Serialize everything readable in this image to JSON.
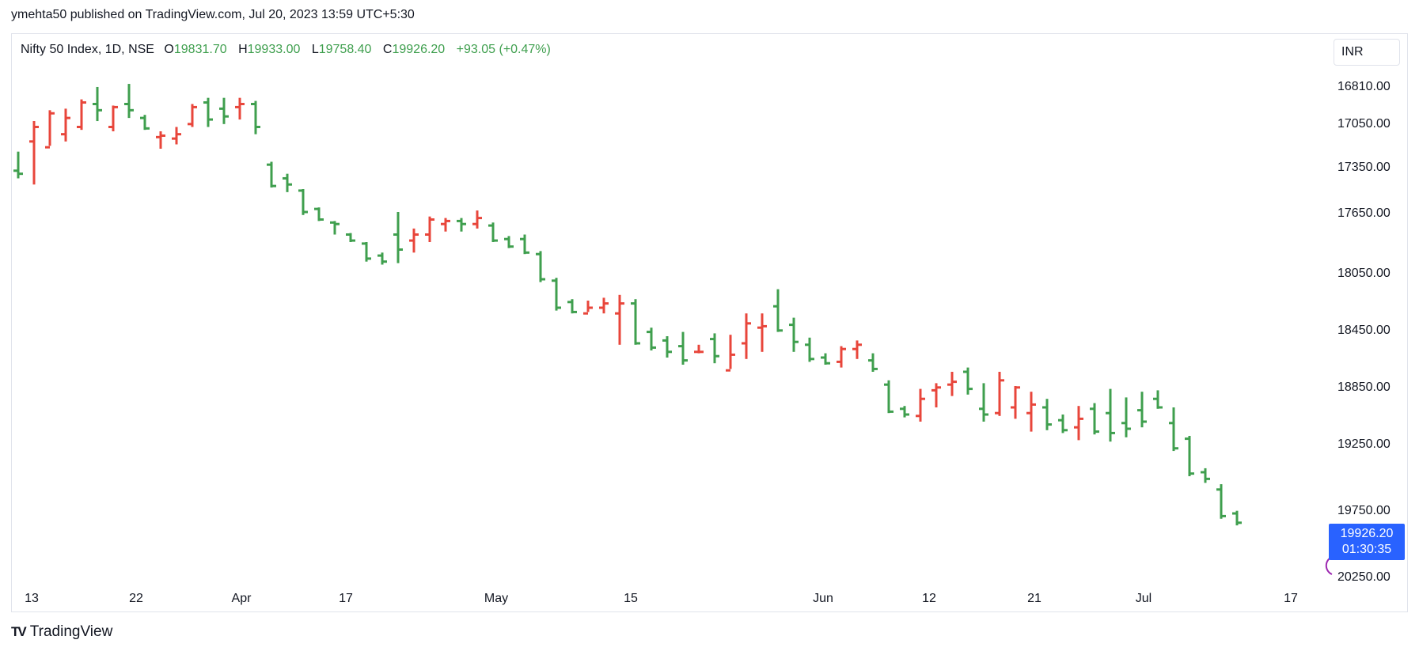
{
  "header": {
    "published": "ymehta50 published on TradingView.com, Jul 20, 2023 13:59 UTC+5:30"
  },
  "legend": {
    "symbol": "Nifty 50 Index, 1D, NSE",
    "o_label": "O",
    "o": "19831.70",
    "h_label": "H",
    "h": "19933.00",
    "l_label": "L",
    "l": "19758.40",
    "c_label": "C",
    "c": "19926.20",
    "change": "+93.05 (+0.47%)"
  },
  "currency": "INR",
  "last_price": {
    "price": "19926.20",
    "countdown": "01:30:35"
  },
  "brand": {
    "name": "TradingView"
  },
  "colors": {
    "up": "#3f9f4e",
    "down": "#e8463b",
    "axis_text": "#131722",
    "price_tag": "#2962ff"
  },
  "chart_data": {
    "type": "ohlc",
    "inverted_price_scale": true,
    "y_ticks": [
      "16810.00",
      "17050.00",
      "17350.00",
      "17650.00",
      "18050.00",
      "18450.00",
      "18850.00",
      "19250.00",
      "19750.00",
      "20250.00"
    ],
    "x_ticks": [
      "13",
      "22",
      "Apr",
      "17",
      "May",
      "15",
      "Jun",
      "12",
      "21",
      "Jul",
      "17"
    ],
    "bars": [
      {
        "o": 17380,
        "h": 17250,
        "l": 17430,
        "c": 17400
      },
      {
        "o": 17180,
        "h": 17040,
        "l": 17470,
        "c": 17080
      },
      {
        "o": 17220,
        "h": 16970,
        "l": 17210,
        "c": 16990
      },
      {
        "o": 17130,
        "h": 16960,
        "l": 17180,
        "c": 17020
      },
      {
        "o": 17080,
        "h": 16900,
        "l": 17100,
        "c": 16920
      },
      {
        "o": 16930,
        "h": 16820,
        "l": 17040,
        "c": 16970
      },
      {
        "o": 17080,
        "h": 16940,
        "l": 17110,
        "c": 16950
      },
      {
        "o": 16930,
        "h": 16800,
        "l": 17020,
        "c": 16970
      },
      {
        "o": 17020,
        "h": 17000,
        "l": 17100,
        "c": 17090
      },
      {
        "o": 17150,
        "h": 17110,
        "l": 17230,
        "c": 17140
      },
      {
        "o": 17160,
        "h": 17080,
        "l": 17200,
        "c": 17130
      },
      {
        "o": 17060,
        "h": 16930,
        "l": 17080,
        "c": 16950
      },
      {
        "o": 16920,
        "h": 16890,
        "l": 17080,
        "c": 17030
      },
      {
        "o": 16960,
        "h": 16890,
        "l": 17060,
        "c": 17010
      },
      {
        "o": 16950,
        "h": 16890,
        "l": 17030,
        "c": 16930
      },
      {
        "o": 16930,
        "h": 16910,
        "l": 17130,
        "c": 17080
      },
      {
        "o": 17340,
        "h": 17320,
        "l": 17490,
        "c": 17480
      },
      {
        "o": 17430,
        "h": 17400,
        "l": 17520,
        "c": 17470
      },
      {
        "o": 17510,
        "h": 17500,
        "l": 17670,
        "c": 17650
      },
      {
        "o": 17630,
        "h": 17620,
        "l": 17710,
        "c": 17700
      },
      {
        "o": 17720,
        "h": 17710,
        "l": 17800,
        "c": 17730
      },
      {
        "o": 17800,
        "h": 17790,
        "l": 17850,
        "c": 17840
      },
      {
        "o": 17860,
        "h": 17850,
        "l": 17980,
        "c": 17960
      },
      {
        "o": 17940,
        "h": 17920,
        "l": 18000,
        "c": 17980
      },
      {
        "o": 17800,
        "h": 17650,
        "l": 17990,
        "c": 17900
      },
      {
        "o": 17840,
        "h": 17760,
        "l": 17920,
        "c": 17800
      },
      {
        "o": 17800,
        "h": 17680,
        "l": 17850,
        "c": 17700
      },
      {
        "o": 17730,
        "h": 17690,
        "l": 17780,
        "c": 17710
      },
      {
        "o": 17710,
        "h": 17690,
        "l": 17780,
        "c": 17730
      },
      {
        "o": 17730,
        "h": 17640,
        "l": 17760,
        "c": 17690
      },
      {
        "o": 17740,
        "h": 17720,
        "l": 17850,
        "c": 17840
      },
      {
        "o": 17830,
        "h": 17810,
        "l": 17890,
        "c": 17880
      },
      {
        "o": 17830,
        "h": 17800,
        "l": 17930,
        "c": 17920
      },
      {
        "o": 17930,
        "h": 17910,
        "l": 18120,
        "c": 18100
      },
      {
        "o": 18110,
        "h": 18090,
        "l": 18320,
        "c": 18300
      },
      {
        "o": 18260,
        "h": 18240,
        "l": 18340,
        "c": 18330
      },
      {
        "o": 18340,
        "h": 18250,
        "l": 18330,
        "c": 18300
      },
      {
        "o": 18300,
        "h": 18230,
        "l": 18340,
        "c": 18270
      },
      {
        "o": 18340,
        "h": 18210,
        "l": 18560,
        "c": 18270
      },
      {
        "o": 18270,
        "h": 18240,
        "l": 18560,
        "c": 18550
      },
      {
        "o": 18470,
        "h": 18440,
        "l": 18600,
        "c": 18580
      },
      {
        "o": 18530,
        "h": 18500,
        "l": 18650,
        "c": 18610
      },
      {
        "o": 18570,
        "h": 18470,
        "l": 18700,
        "c": 18670
      },
      {
        "o": 18610,
        "h": 18560,
        "l": 18620,
        "c": 18610
      },
      {
        "o": 18520,
        "h": 18480,
        "l": 18690,
        "c": 18640
      },
      {
        "o": 18740,
        "h": 18490,
        "l": 18730,
        "c": 18630
      },
      {
        "o": 18550,
        "h": 18340,
        "l": 18660,
        "c": 18410
      },
      {
        "o": 18440,
        "h": 18340,
        "l": 18610,
        "c": 18430
      },
      {
        "o": 18290,
        "h": 18170,
        "l": 18470,
        "c": 18460
      },
      {
        "o": 18420,
        "h": 18370,
        "l": 18610,
        "c": 18540
      },
      {
        "o": 18560,
        "h": 18510,
        "l": 18680,
        "c": 18660
      },
      {
        "o": 18650,
        "h": 18620,
        "l": 18700,
        "c": 18690
      },
      {
        "o": 18680,
        "h": 18570,
        "l": 18720,
        "c": 18590
      },
      {
        "o": 18590,
        "h": 18530,
        "l": 18660,
        "c": 18560
      },
      {
        "o": 18670,
        "h": 18620,
        "l": 18750,
        "c": 18730
      },
      {
        "o": 18840,
        "h": 18810,
        "l": 19040,
        "c": 19030
      },
      {
        "o": 19010,
        "h": 18990,
        "l": 19070,
        "c": 19050
      },
      {
        "o": 19060,
        "h": 18870,
        "l": 19100,
        "c": 18940
      },
      {
        "o": 18880,
        "h": 18830,
        "l": 19000,
        "c": 18860
      },
      {
        "o": 18840,
        "h": 18750,
        "l": 18920,
        "c": 18820
      },
      {
        "o": 18750,
        "h": 18720,
        "l": 18910,
        "c": 18870
      },
      {
        "o": 19010,
        "h": 18830,
        "l": 19100,
        "c": 19050
      },
      {
        "o": 19040,
        "h": 18750,
        "l": 19060,
        "c": 18810
      },
      {
        "o": 19000,
        "h": 18850,
        "l": 19080,
        "c": 18860
      },
      {
        "o": 19040,
        "h": 18890,
        "l": 19170,
        "c": 18980
      },
      {
        "o": 19000,
        "h": 18940,
        "l": 19160,
        "c": 19120
      },
      {
        "o": 19090,
        "h": 19050,
        "l": 19180,
        "c": 19160
      },
      {
        "o": 19140,
        "h": 18990,
        "l": 19230,
        "c": 19080
      },
      {
        "o": 19010,
        "h": 18970,
        "l": 19190,
        "c": 19170
      },
      {
        "o": 19040,
        "h": 18870,
        "l": 19240,
        "c": 19180
      },
      {
        "o": 19110,
        "h": 18930,
        "l": 19210,
        "c": 19150
      },
      {
        "o": 19020,
        "h": 18890,
        "l": 19140,
        "c": 19100
      },
      {
        "o": 18940,
        "h": 18880,
        "l": 19010,
        "c": 19000
      },
      {
        "o": 19110,
        "h": 19000,
        "l": 19310,
        "c": 19290
      },
      {
        "o": 19220,
        "h": 19200,
        "l": 19500,
        "c": 19480
      },
      {
        "o": 19470,
        "h": 19440,
        "l": 19550,
        "c": 19520
      },
      {
        "o": 19600,
        "h": 19560,
        "l": 19820,
        "c": 19800
      },
      {
        "o": 19780,
        "h": 19760,
        "l": 19870,
        "c": 19850
      }
    ]
  }
}
